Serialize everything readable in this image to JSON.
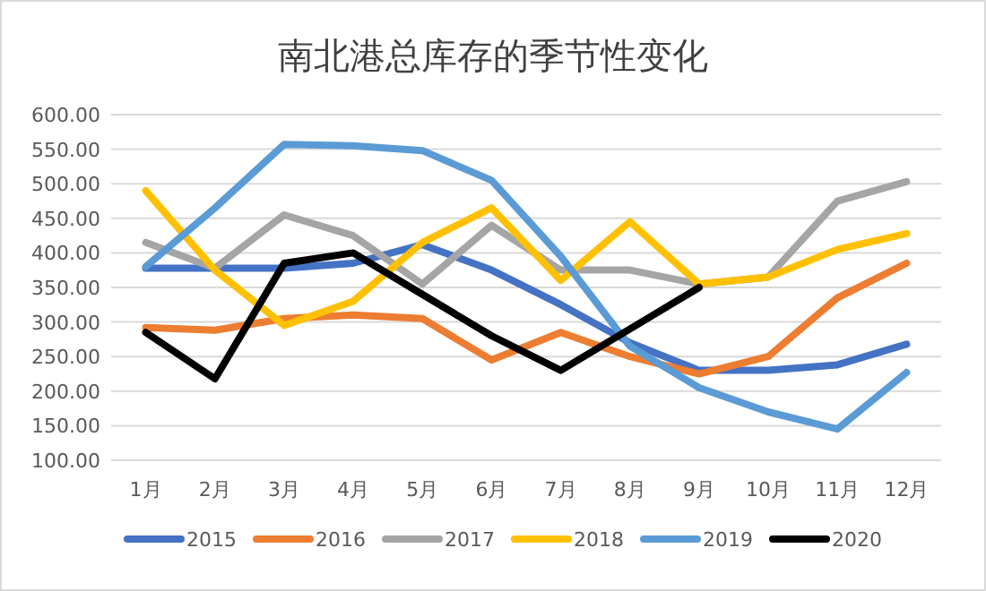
{
  "chart_data": {
    "type": "line",
    "title": "南北港总库存的季节性变化",
    "categories": [
      "1月",
      "2月",
      "3月",
      "4月",
      "5月",
      "6月",
      "7月",
      "8月",
      "9月",
      "10月",
      "11月",
      "12月"
    ],
    "ylim": [
      100,
      600
    ],
    "yticks": [
      {
        "value": 100,
        "label": "100.00"
      },
      {
        "value": 150,
        "label": "150.00"
      },
      {
        "value": 200,
        "label": "200.00"
      },
      {
        "value": 250,
        "label": "250.00"
      },
      {
        "value": 300,
        "label": "300.00"
      },
      {
        "value": 350,
        "label": "350.00"
      },
      {
        "value": 400,
        "label": "400.00"
      },
      {
        "value": 450,
        "label": "450.00"
      },
      {
        "value": 500,
        "label": "500.00"
      },
      {
        "value": 550,
        "label": "550.00"
      },
      {
        "value": 600,
        "label": "600.00"
      }
    ],
    "grid": "y",
    "legend": "bottom",
    "marker": "none",
    "line_style": "solid",
    "series": [
      {
        "name": "2015",
        "color": "#4472c4",
        "values": [
          378,
          378,
          378,
          385,
          412,
          375,
          325,
          270,
          230,
          230,
          238,
          268
        ]
      },
      {
        "name": "2016",
        "color": "#ed7d31",
        "values": [
          292,
          288,
          305,
          310,
          305,
          245,
          285,
          250,
          225,
          250,
          335,
          385
        ]
      },
      {
        "name": "2017",
        "color": "#a5a5a5",
        "values": [
          415,
          378,
          455,
          425,
          355,
          440,
          375,
          375,
          355,
          365,
          475,
          503
        ]
      },
      {
        "name": "2018",
        "color": "#ffc000",
        "values": [
          490,
          375,
          295,
          330,
          415,
          465,
          360,
          445,
          355,
          365,
          405,
          428
        ]
      },
      {
        "name": "2019",
        "color": "#5b9bd5",
        "values": [
          380,
          465,
          557,
          555,
          548,
          505,
          395,
          265,
          205,
          170,
          145,
          227
        ]
      },
      {
        "name": "2020",
        "color": "#000000",
        "values": [
          285,
          218,
          385,
          400,
          340,
          280,
          230,
          290,
          350,
          null,
          null,
          null
        ]
      }
    ]
  }
}
